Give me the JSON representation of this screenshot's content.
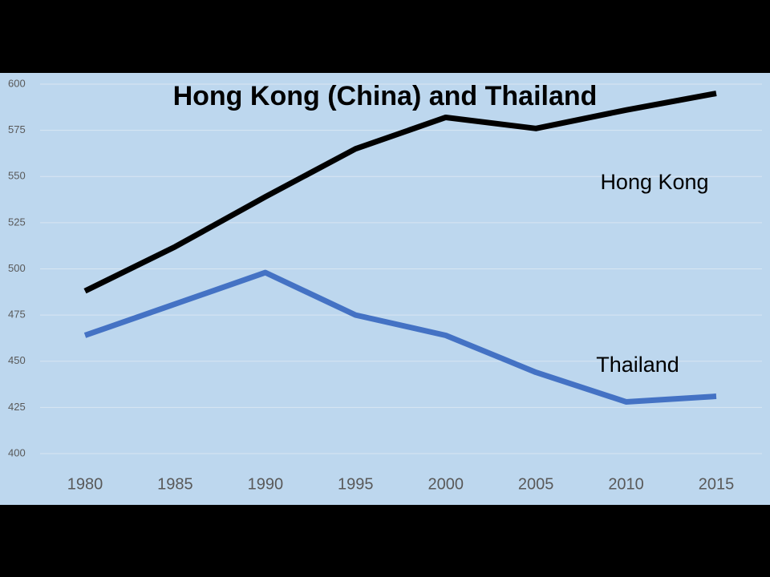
{
  "chart_data": {
    "type": "line",
    "title": "Hong Kong (China) and Thailand",
    "categories": [
      "1980",
      "1985",
      "1990",
      "1995",
      "2000",
      "2005",
      "2010",
      "2015"
    ],
    "series": [
      {
        "name": "Hong Kong",
        "color": "#000000",
        "values": [
          488,
          512,
          539,
          565,
          582,
          576,
          586,
          595
        ]
      },
      {
        "name": "Thailand",
        "color": "#4472c4",
        "values": [
          464,
          481,
          498,
          475,
          464,
          444,
          428,
          431
        ]
      }
    ],
    "ylim": [
      400,
      600
    ],
    "yticks": [
      400,
      425,
      450,
      475,
      500,
      525,
      550,
      575,
      600
    ],
    "grid": true
  }
}
